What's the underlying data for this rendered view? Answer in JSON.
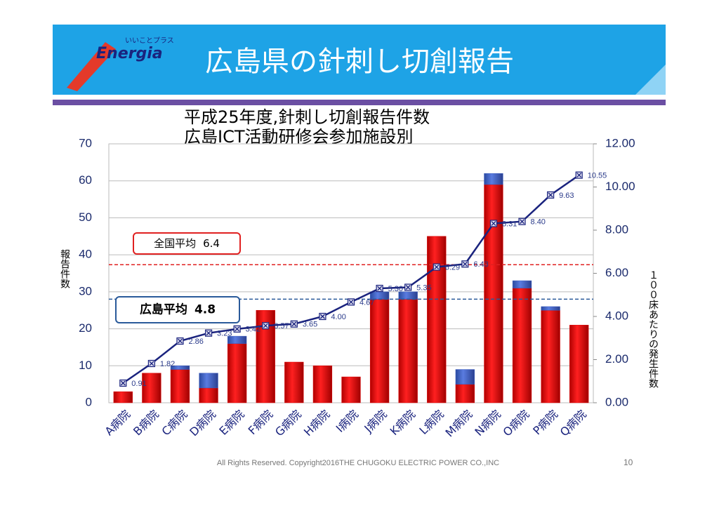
{
  "header": {
    "title": "広島県の針刺し切創報告",
    "logo": "Energia",
    "logo_tagline": "いいことプラス"
  },
  "chart_data": {
    "type": "bar",
    "title": [
      "平成25年度,針刺し切創報告件数",
      "広島ICT活動研修会参加施設別"
    ],
    "y_label": "報告件数",
    "y2_label": "１００床あたりの発生件数",
    "categories": [
      "A病院",
      "B病院",
      "C病院",
      "D病院",
      "E病院",
      "F病院",
      "G病院",
      "H病院",
      "I病院",
      "J病院",
      "K病院",
      "L病院",
      "M病院",
      "N病院",
      "O病院",
      "P病院",
      "Q病院"
    ],
    "series": [
      {
        "color": "#e00000",
        "values": [
          3,
          8,
          9,
          4,
          16,
          25,
          11,
          10,
          7,
          28,
          28,
          45,
          5,
          59,
          31,
          25,
          21
        ]
      },
      {
        "color": "#3a5cc0",
        "values": [
          0,
          0,
          1,
          4,
          2,
          0,
          0,
          0,
          0,
          2,
          2,
          0,
          4,
          3,
          2,
          1,
          0
        ]
      },
      {
        "type": "line",
        "axis": "y2",
        "color": "#1a237e",
        "values": [
          0.91,
          1.82,
          2.86,
          3.23,
          3.42,
          3.57,
          3.65,
          4.0,
          4.67,
          5.3,
          5.35,
          6.29,
          6.43,
          8.31,
          8.4,
          9.63,
          10.55
        ],
        "value_labels": [
          "0.91",
          "1.82",
          "2.86",
          "3.23",
          "3.42",
          "3.57",
          "3.65",
          "4.00",
          "4.67",
          "5.30",
          "5.35",
          "6.29",
          "6.43",
          "8.31",
          "8.40",
          "9.63",
          "10.55"
        ]
      }
    ],
    "reference_lines": [
      {
        "label": "全国平均",
        "value": 6.4,
        "color": "#e02020"
      },
      {
        "label": "広島平均",
        "value": 4.8,
        "color": "#2a5a9a"
      }
    ],
    "ylim": [
      0,
      70
    ],
    "yticks": [
      0,
      10,
      20,
      30,
      40,
      50,
      60,
      70
    ],
    "y2lim": [
      0,
      12
    ],
    "y2ticks": [
      {
        "value": 0,
        "label": "0.00"
      },
      {
        "value": 2,
        "label": "2.00"
      },
      {
        "value": 4,
        "label": "4.00"
      },
      {
        "value": 6,
        "label": "6.00"
      },
      {
        "value": 8,
        "label": "8.00"
      },
      {
        "value": 10,
        "label": "10.00"
      },
      {
        "value": 12,
        "label": "12.00"
      }
    ]
  },
  "footer": {
    "copyright": "All Rights Reserved. Copyright2016THE CHUGOKU ELECTRIC POWER CO.,INC",
    "page": "10"
  }
}
